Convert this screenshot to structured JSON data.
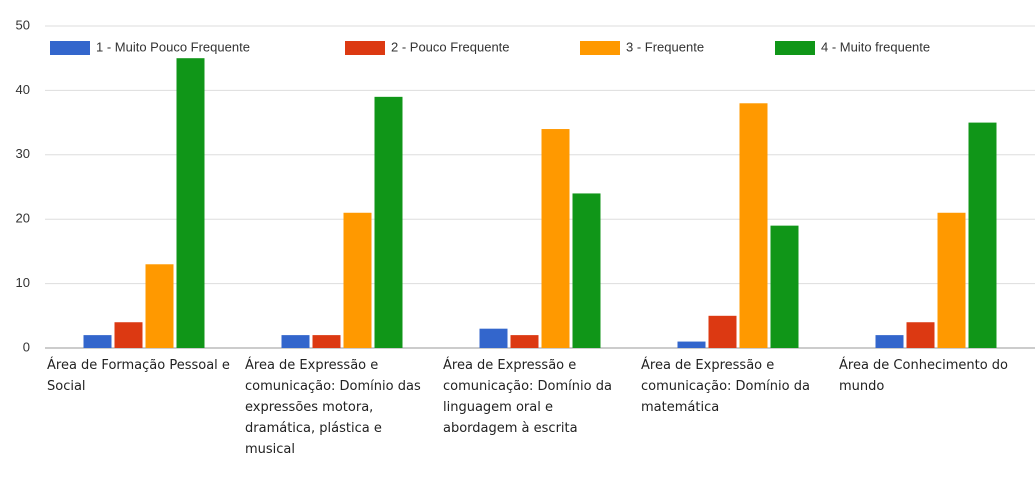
{
  "chart_data": {
    "type": "bar",
    "categories": [
      "Área de Formação Pessoal e Social",
      "Área de Expressão e comunicação: Domínio das expressões motora, dramática, plástica e musical",
      "Área de Expressão e comunicação: Domínio da linguagem oral e abordagem à escrita",
      "Área de Expressão e comunicação: Domínio da matemática",
      "Área de Conhecimento do mundo"
    ],
    "series": [
      {
        "name": "1 - Muito Pouco Frequente",
        "color": "#3366cc",
        "values": [
          2,
          2,
          3,
          1,
          2
        ]
      },
      {
        "name": "2 - Pouco Frequente",
        "color": "#dc3912",
        "values": [
          4,
          2,
          2,
          5,
          4
        ]
      },
      {
        "name": "3 - Frequente",
        "color": "#ff9900",
        "values": [
          13,
          21,
          34,
          38,
          21
        ]
      },
      {
        "name": "4 - Muito frequente",
        "color": "#109618",
        "values": [
          45,
          39,
          24,
          19,
          35
        ]
      }
    ],
    "ylim": [
      0,
      50
    ],
    "yticks": [
      0,
      10,
      20,
      30,
      40,
      50
    ],
    "grid": true,
    "legend": "top"
  }
}
